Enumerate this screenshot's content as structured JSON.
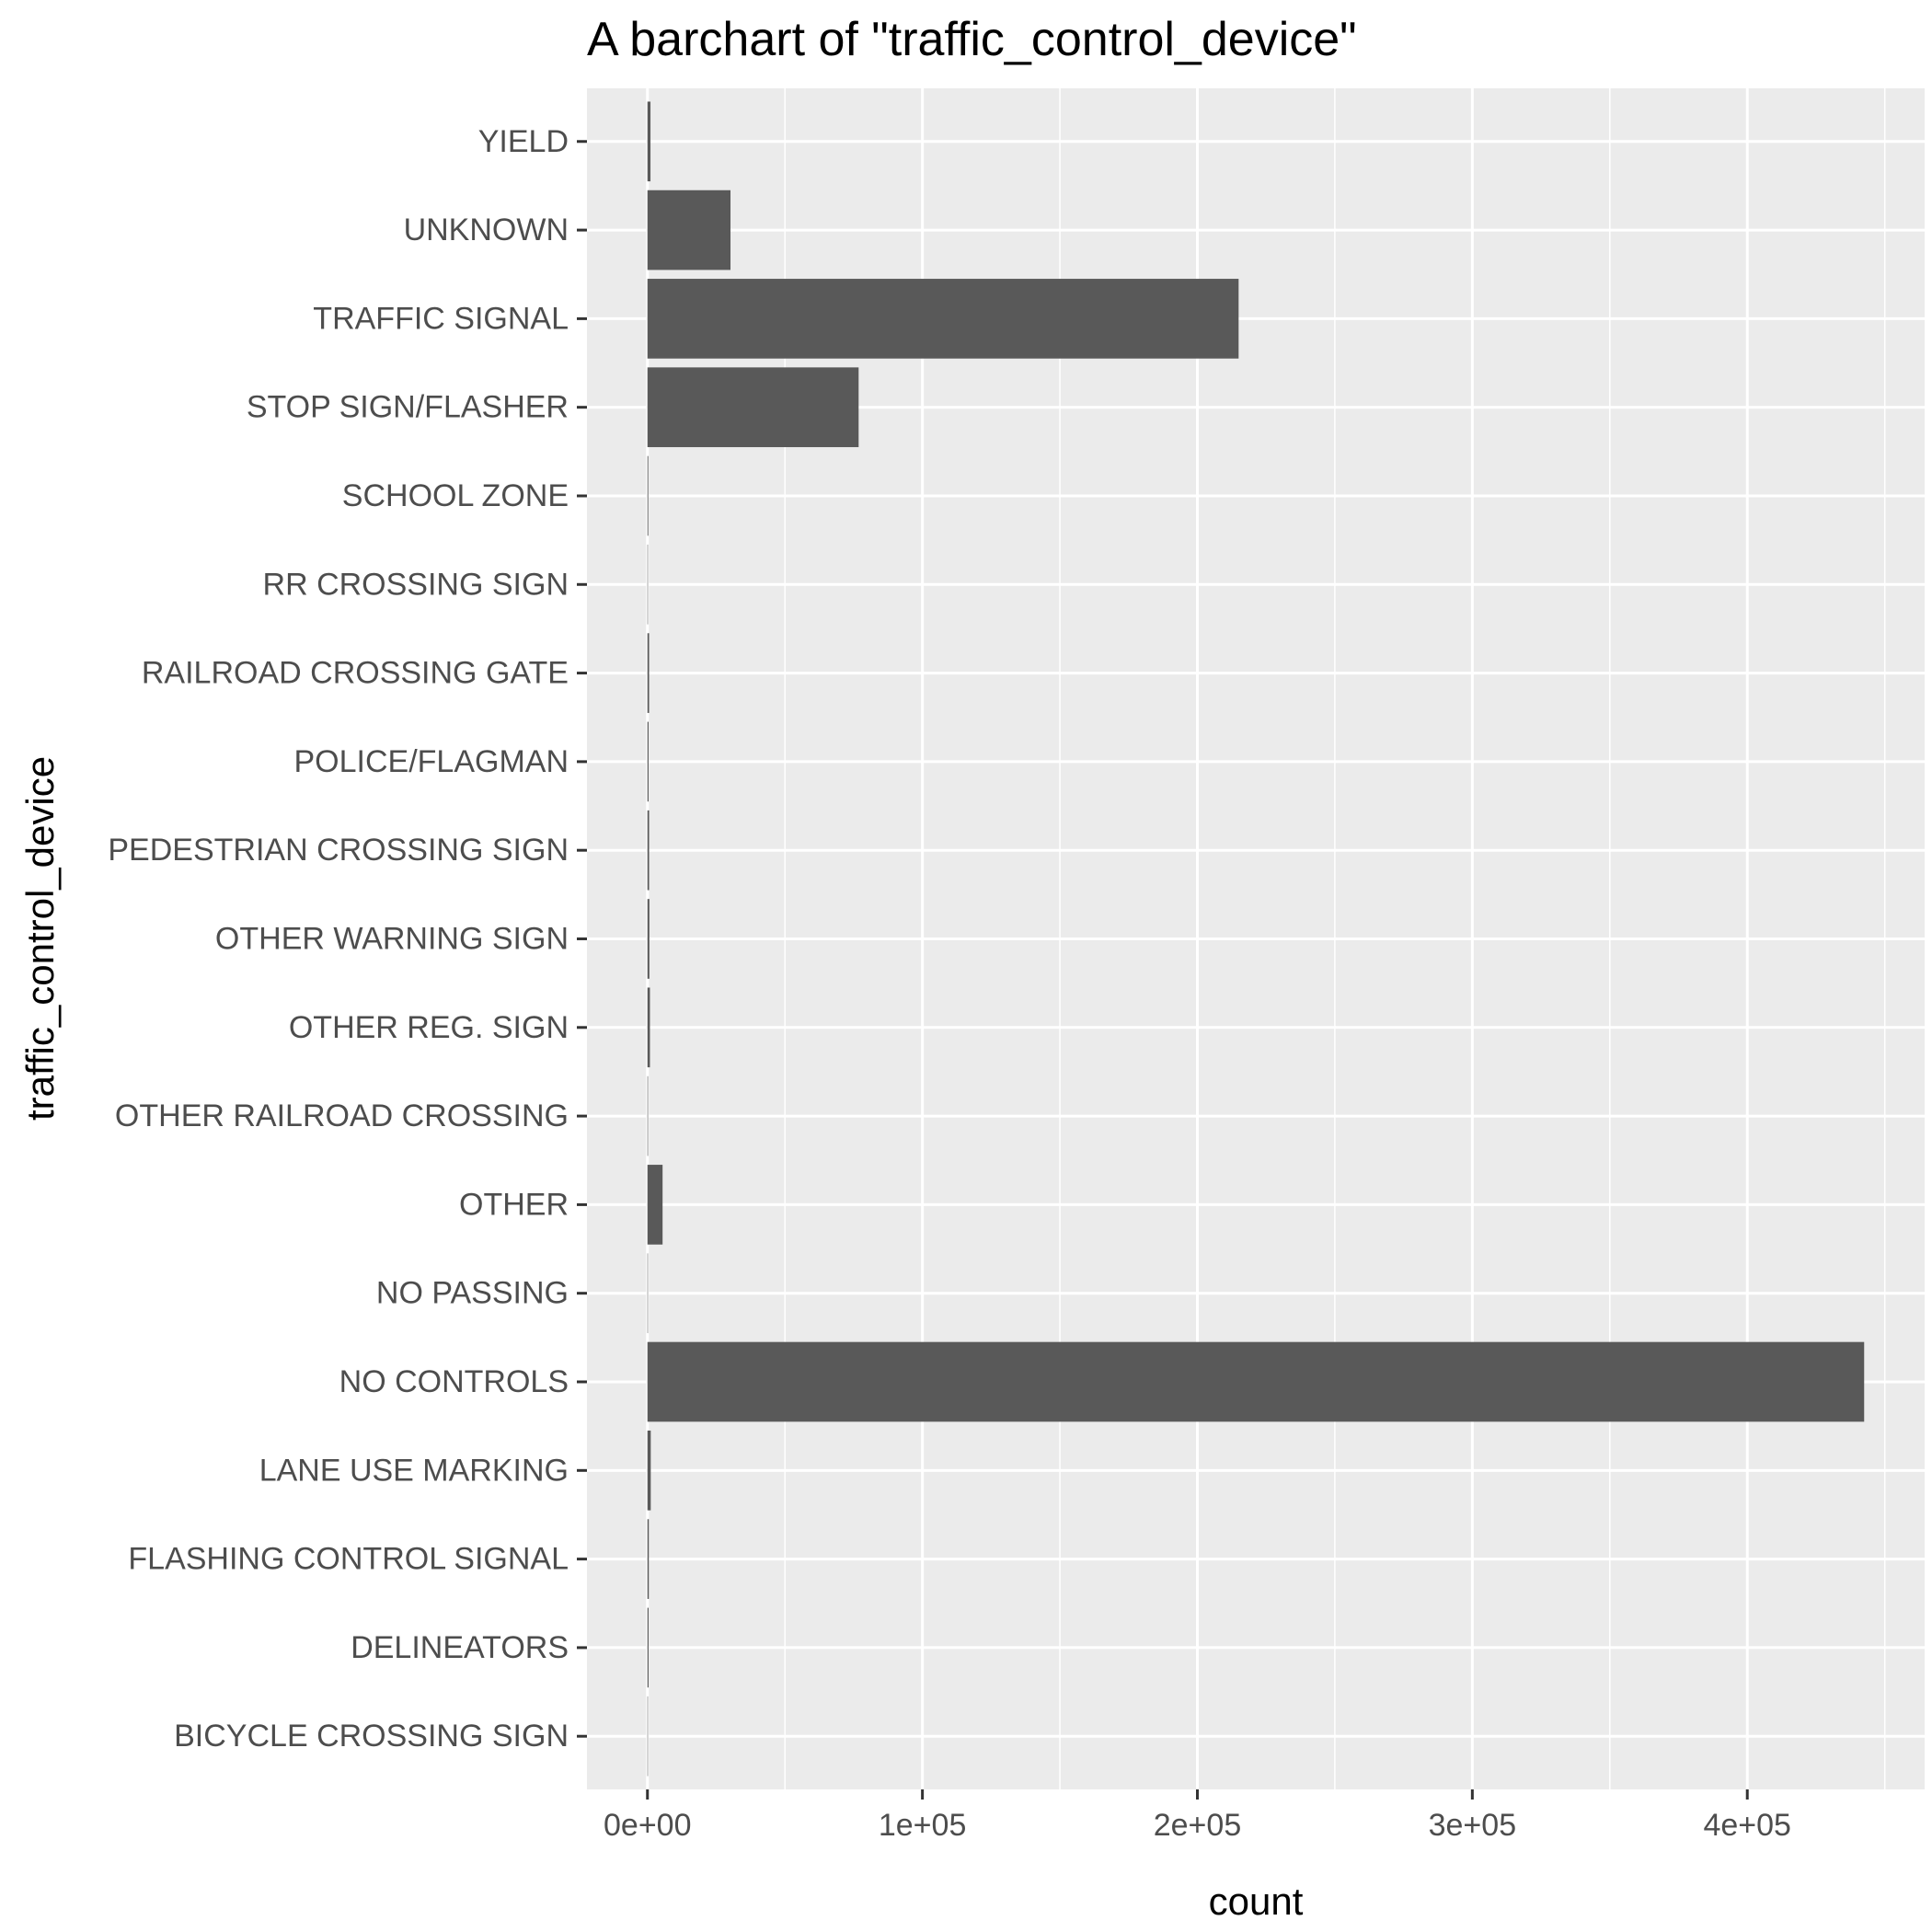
{
  "chart_data": {
    "type": "bar",
    "orientation": "horizontal",
    "title": "A barchart of \"traffic_control_device\"",
    "xlabel": "count",
    "ylabel": "traffic_control_device",
    "categories": [
      "BICYCLE CROSSING SIGN",
      "DELINEATORS",
      "FLASHING CONTROL SIGNAL",
      "LANE USE MARKING",
      "NO CONTROLS",
      "NO PASSING",
      "OTHER",
      "OTHER RAILROAD CROSSING",
      "OTHER REG. SIGN",
      "OTHER WARNING SIGN",
      "PEDESTRIAN CROSSING SIGN",
      "POLICE/FLAGMAN",
      "RAILROAD CROSSING GATE",
      "RR CROSSING SIGN",
      "SCHOOL ZONE",
      "STOP SIGN/FLASHER",
      "TRAFFIC SIGNAL",
      "UNKNOWN",
      "YIELD"
    ],
    "values": [
      100,
      400,
      500,
      1200,
      442500,
      100,
      5500,
      200,
      900,
      700,
      600,
      400,
      600,
      100,
      300,
      76800,
      215000,
      30200,
      1100
    ],
    "xlim": [
      -22000,
      464500
    ],
    "xticks": [
      0,
      100000,
      200000,
      300000,
      400000
    ],
    "xtick_labels": [
      "0e+00",
      "1e+05",
      "2e+05",
      "3e+05",
      "4e+05"
    ],
    "grid": true,
    "colors": {
      "bar": "#595959",
      "panel": "#ebebeb",
      "grid": "#ffffff"
    }
  }
}
